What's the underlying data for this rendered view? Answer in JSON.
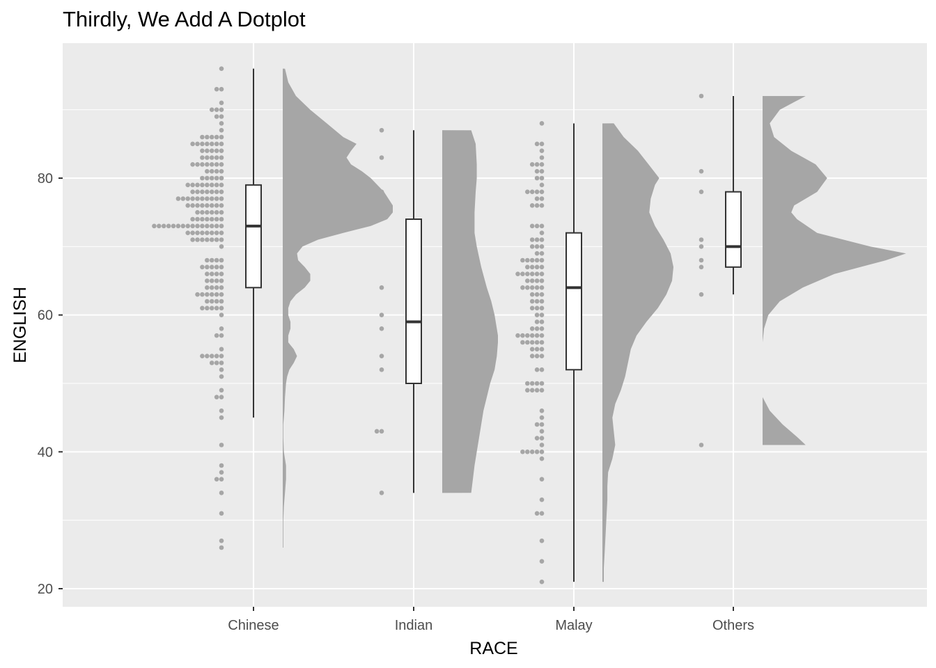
{
  "chart_data": {
    "type": "raincloud",
    "title": "Thirdly, We Add A Dotplot",
    "xlabel": "RACE",
    "ylabel": "ENGLISH",
    "categories": [
      "Chinese",
      "Indian",
      "Malay",
      "Others"
    ],
    "y_ticks": [
      20,
      40,
      60,
      80
    ],
    "ylim": [
      17,
      99
    ],
    "grid": true,
    "colors": {
      "panel": "#ebebeb",
      "grid": "#ffffff",
      "fill": "#a6a6a6",
      "dot": "#a6a6a6",
      "box_line": "#333333"
    },
    "boxplots": [
      {
        "category": "Chinese",
        "min": 45,
        "q1": 64,
        "median": 73,
        "q3": 79,
        "max": 96
      },
      {
        "category": "Indian",
        "min": 34,
        "q1": 50,
        "median": 59,
        "q3": 74,
        "max": 87
      },
      {
        "category": "Malay",
        "min": 21,
        "q1": 52,
        "median": 64,
        "q3": 72,
        "max": 88
      },
      {
        "category": "Others",
        "min": 63,
        "q1": 67,
        "median": 70,
        "q3": 78,
        "max": 92
      }
    ],
    "dotplots": [
      {
        "category": "Chinese",
        "stacks": [
          [
            96,
            1
          ],
          [
            93,
            2
          ],
          [
            91,
            1
          ],
          [
            90,
            3
          ],
          [
            89,
            2
          ],
          [
            88,
            1
          ],
          [
            87,
            1
          ],
          [
            86,
            5
          ],
          [
            85,
            7
          ],
          [
            84,
            5
          ],
          [
            83,
            5
          ],
          [
            82,
            7
          ],
          [
            81,
            4
          ],
          [
            80,
            5
          ],
          [
            79,
            8
          ],
          [
            78,
            7
          ],
          [
            77,
            10
          ],
          [
            76,
            8
          ],
          [
            75,
            6
          ],
          [
            74,
            7
          ],
          [
            73,
            15
          ],
          [
            72,
            8
          ],
          [
            71,
            7
          ],
          [
            70,
            1
          ],
          [
            68,
            4
          ],
          [
            67,
            5
          ],
          [
            66,
            4
          ],
          [
            65,
            4
          ],
          [
            64,
            4
          ],
          [
            63,
            6
          ],
          [
            62,
            4
          ],
          [
            61,
            5
          ],
          [
            60,
            1
          ],
          [
            58,
            1
          ],
          [
            57,
            2
          ],
          [
            55,
            1
          ],
          [
            54,
            5
          ],
          [
            53,
            3
          ],
          [
            52,
            1
          ],
          [
            51,
            1
          ],
          [
            49,
            1
          ],
          [
            48,
            2
          ],
          [
            46,
            1
          ],
          [
            45,
            1
          ],
          [
            41,
            1
          ],
          [
            38,
            1
          ],
          [
            37,
            1
          ],
          [
            36,
            2
          ],
          [
            34,
            1
          ],
          [
            31,
            1
          ],
          [
            27,
            1
          ],
          [
            26,
            1
          ]
        ]
      },
      {
        "category": "Indian",
        "stacks": [
          [
            87,
            1
          ],
          [
            83,
            1
          ],
          [
            78,
            1
          ],
          [
            64,
            1
          ],
          [
            60,
            1
          ],
          [
            58,
            1
          ],
          [
            54,
            1
          ],
          [
            52,
            1
          ],
          [
            43,
            2
          ],
          [
            34,
            1
          ]
        ]
      },
      {
        "category": "Malay",
        "stacks": [
          [
            88,
            1
          ],
          [
            85,
            2
          ],
          [
            84,
            1
          ],
          [
            83,
            1
          ],
          [
            82,
            3
          ],
          [
            81,
            2
          ],
          [
            80,
            2
          ],
          [
            79,
            1
          ],
          [
            78,
            4
          ],
          [
            77,
            2
          ],
          [
            76,
            3
          ],
          [
            73,
            3
          ],
          [
            72,
            1
          ],
          [
            71,
            3
          ],
          [
            70,
            3
          ],
          [
            69,
            2
          ],
          [
            68,
            5
          ],
          [
            67,
            4
          ],
          [
            66,
            6
          ],
          [
            65,
            4
          ],
          [
            64,
            5
          ],
          [
            63,
            3
          ],
          [
            62,
            3
          ],
          [
            61,
            3
          ],
          [
            60,
            2
          ],
          [
            59,
            2
          ],
          [
            58,
            3
          ],
          [
            57,
            6
          ],
          [
            56,
            5
          ],
          [
            55,
            3
          ],
          [
            54,
            3
          ],
          [
            52,
            2
          ],
          [
            50,
            4
          ],
          [
            49,
            4
          ],
          [
            46,
            1
          ],
          [
            45,
            1
          ],
          [
            44,
            2
          ],
          [
            43,
            1
          ],
          [
            42,
            2
          ],
          [
            41,
            1
          ],
          [
            40,
            5
          ],
          [
            39,
            1
          ],
          [
            36,
            1
          ],
          [
            33,
            1
          ],
          [
            31,
            2
          ],
          [
            27,
            1
          ],
          [
            24,
            1
          ],
          [
            21,
            1
          ]
        ]
      },
      {
        "category": "Others",
        "stacks": [
          [
            92,
            1
          ],
          [
            81,
            1
          ],
          [
            78,
            1
          ],
          [
            71,
            1
          ],
          [
            70,
            1
          ],
          [
            68,
            1
          ],
          [
            67,
            1
          ],
          [
            63,
            1
          ],
          [
            41,
            1
          ]
        ]
      }
    ],
    "densities": [
      {
        "category": "Chinese",
        "y_range": [
          26,
          96
        ],
        "profile": [
          [
            96,
            0.02
          ],
          [
            94,
            0.05
          ],
          [
            92,
            0.12
          ],
          [
            90,
            0.25
          ],
          [
            88,
            0.4
          ],
          [
            86,
            0.55
          ],
          [
            85,
            0.67
          ],
          [
            84,
            0.62
          ],
          [
            83,
            0.58
          ],
          [
            82,
            0.62
          ],
          [
            81,
            0.72
          ],
          [
            80,
            0.8
          ],
          [
            78,
            0.92
          ],
          [
            76,
            1.0
          ],
          [
            75,
            1.0
          ],
          [
            74,
            0.95
          ],
          [
            73,
            0.8
          ],
          [
            72,
            0.55
          ],
          [
            71,
            0.32
          ],
          [
            70,
            0.18
          ],
          [
            69,
            0.13
          ],
          [
            68,
            0.14
          ],
          [
            67,
            0.2
          ],
          [
            66,
            0.25
          ],
          [
            65,
            0.25
          ],
          [
            64,
            0.2
          ],
          [
            63,
            0.12
          ],
          [
            62,
            0.07
          ],
          [
            61,
            0.05
          ],
          [
            60,
            0.05
          ],
          [
            59,
            0.07
          ],
          [
            58,
            0.07
          ],
          [
            57,
            0.05
          ],
          [
            56,
            0.05
          ],
          [
            55,
            0.1
          ],
          [
            54,
            0.13
          ],
          [
            53,
            0.1
          ],
          [
            52,
            0.06
          ],
          [
            51,
            0.04
          ],
          [
            50,
            0.03
          ],
          [
            48,
            0.02
          ],
          [
            46,
            0.015
          ],
          [
            44,
            0.005
          ],
          [
            42,
            0.005
          ],
          [
            40,
            0.01
          ],
          [
            38,
            0.03
          ],
          [
            36,
            0.03
          ],
          [
            34,
            0.02
          ],
          [
            32,
            0.01
          ],
          [
            30,
            0.005
          ],
          [
            28,
            0.005
          ],
          [
            26,
            0.005
          ]
        ]
      },
      {
        "category": "Indian",
        "y_range": [
          34,
          87
        ],
        "profile": [
          [
            87,
            0.52
          ],
          [
            85,
            0.6
          ],
          [
            82,
            0.62
          ],
          [
            80,
            0.62
          ],
          [
            78,
            0.6
          ],
          [
            75,
            0.58
          ],
          [
            72,
            0.58
          ],
          [
            70,
            0.62
          ],
          [
            67,
            0.7
          ],
          [
            64,
            0.8
          ],
          [
            62,
            0.88
          ],
          [
            60,
            0.94
          ],
          [
            58,
            0.98
          ],
          [
            57,
            1.0
          ],
          [
            56,
            1.0
          ],
          [
            54,
            0.98
          ],
          [
            52,
            0.94
          ],
          [
            50,
            0.86
          ],
          [
            48,
            0.8
          ],
          [
            46,
            0.74
          ],
          [
            44,
            0.7
          ],
          [
            42,
            0.66
          ],
          [
            40,
            0.62
          ],
          [
            38,
            0.58
          ],
          [
            36,
            0.55
          ],
          [
            34,
            0.52
          ]
        ]
      },
      {
        "category": "Malay",
        "y_range": [
          21,
          88
        ],
        "profile": [
          [
            88,
            0.16
          ],
          [
            86,
            0.3
          ],
          [
            84,
            0.5
          ],
          [
            82,
            0.65
          ],
          [
            80,
            0.8
          ],
          [
            79,
            0.74
          ],
          [
            77,
            0.68
          ],
          [
            75,
            0.66
          ],
          [
            73,
            0.74
          ],
          [
            71,
            0.86
          ],
          [
            69,
            0.96
          ],
          [
            67,
            1.0
          ],
          [
            65,
            0.98
          ],
          [
            63,
            0.9
          ],
          [
            61,
            0.78
          ],
          [
            59,
            0.62
          ],
          [
            57,
            0.48
          ],
          [
            55,
            0.4
          ],
          [
            53,
            0.36
          ],
          [
            51,
            0.32
          ],
          [
            49,
            0.26
          ],
          [
            47,
            0.18
          ],
          [
            45,
            0.14
          ],
          [
            43,
            0.16
          ],
          [
            41,
            0.18
          ],
          [
            39,
            0.14
          ],
          [
            37,
            0.08
          ],
          [
            35,
            0.07
          ],
          [
            33,
            0.07
          ],
          [
            31,
            0.06
          ],
          [
            29,
            0.05
          ],
          [
            27,
            0.04
          ],
          [
            25,
            0.03
          ],
          [
            23,
            0.02
          ],
          [
            21,
            0.02
          ]
        ]
      },
      {
        "category": "Others",
        "y_range": [
          41,
          92
        ],
        "profile": [
          [
            92,
            0.3
          ],
          [
            90,
            0.12
          ],
          [
            88,
            0.05
          ],
          [
            86,
            0.08
          ],
          [
            84,
            0.2
          ],
          [
            82,
            0.37
          ],
          [
            80,
            0.45
          ],
          [
            78,
            0.38
          ],
          [
            76,
            0.22
          ],
          [
            75,
            0.2
          ],
          [
            74,
            0.24
          ],
          [
            72,
            0.38
          ],
          [
            70,
            0.75
          ],
          [
            69,
            1.0
          ],
          [
            68,
            0.86
          ],
          [
            66,
            0.5
          ],
          [
            64,
            0.28
          ],
          [
            62,
            0.12
          ],
          [
            60,
            0.04
          ],
          [
            58,
            0.01
          ],
          [
            56,
            0.0
          ],
          [
            54,
            0.0
          ],
          [
            52,
            0.0
          ],
          [
            50,
            0.0
          ],
          [
            48,
            0.0
          ],
          [
            46,
            0.05
          ],
          [
            44,
            0.14
          ],
          [
            42,
            0.25
          ],
          [
            41,
            0.3
          ]
        ]
      }
    ]
  }
}
